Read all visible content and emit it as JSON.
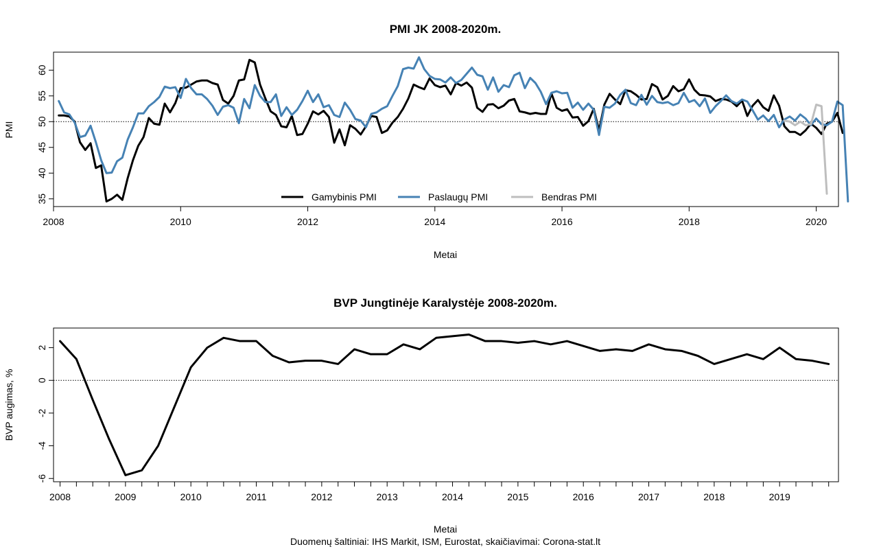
{
  "footer": {
    "source": "Duomenų šaltiniai: IHS Markit, ISM, Eurostat, skaičiavimai: Corona-stat.lt"
  },
  "chart_data": [
    {
      "type": "line",
      "title": "PMI JK 2008-2020m.",
      "xlabel": "Metai",
      "ylabel": "PMI",
      "xlim": [
        2008.0,
        2020.35
      ],
      "ylim": [
        33.5,
        63.5
      ],
      "x_ticks": [
        2008,
        2010,
        2012,
        2014,
        2016,
        2018,
        2020
      ],
      "x_tick_labels": [
        "2008",
        "2010",
        "2012",
        "2014",
        "2016",
        "2018",
        "2020"
      ],
      "y_ticks": [
        35,
        40,
        45,
        50,
        55,
        60
      ],
      "y_tick_labels": [
        "35",
        "40",
        "45",
        "50",
        "55",
        "60"
      ],
      "reference_line": {
        "y": 50,
        "style": "dotted"
      },
      "legend_position": "bottom-center",
      "series": [
        {
          "name": "Gamybinis PMI",
          "color": "#000000",
          "x_start": 2008.083,
          "x_step": 0.08333,
          "values": [
            51.2,
            51.2,
            51.0,
            50.0,
            46.0,
            44.5,
            45.8,
            41.0,
            41.5,
            34.5,
            35.0,
            35.8,
            34.8,
            39.0,
            42.5,
            45.3,
            47.0,
            50.7,
            49.6,
            49.4,
            53.5,
            51.8,
            53.6,
            56.5,
            56.6,
            57.2,
            57.8,
            58.0,
            58.0,
            57.5,
            57.2,
            54.2,
            53.5,
            55.0,
            58.0,
            58.2,
            62.0,
            61.5,
            57.2,
            54.5,
            52.0,
            51.3,
            49.1,
            48.9,
            51.1,
            47.4,
            47.6,
            49.6,
            52.0,
            51.4,
            52.1,
            50.9,
            45.9,
            48.5,
            45.4,
            49.3,
            48.6,
            47.5,
            49.1,
            51.1,
            50.9,
            47.8,
            48.3,
            49.8,
            50.9,
            52.5,
            54.5,
            57.2,
            56.7,
            56.3,
            58.4,
            57.1,
            56.7,
            57.0,
            55.3,
            57.5,
            57.0,
            57.6,
            56.6,
            52.7,
            51.9,
            53.3,
            53.4,
            52.6,
            53.1,
            54.1,
            54.4,
            52.0,
            51.8,
            51.5,
            51.7,
            51.5,
            51.5,
            55.5,
            52.7,
            52.1,
            52.4,
            50.8,
            50.9,
            49.2,
            50.1,
            52.5,
            48.3,
            53.3,
            55.4,
            54.3,
            53.4,
            56.1,
            55.9,
            55.2,
            54.3,
            54.4,
            57.3,
            56.7,
            54.3,
            55.0,
            56.9,
            55.9,
            56.3,
            58.2,
            56.2,
            55.2,
            55.1,
            54.9,
            54.0,
            54.4,
            54.3,
            53.9,
            53.0,
            54.1,
            51.1,
            53.1,
            54.2,
            52.8,
            52.1,
            55.1,
            53.1,
            49.1,
            48.0,
            48.0,
            47.4,
            48.3,
            49.6,
            48.8,
            47.6,
            49.6,
            50.0,
            51.7,
            47.8
          ]
        },
        {
          "name": "Paslaugų PMI",
          "color": "#4682B4",
          "x_start": 2008.083,
          "x_step": 0.08333,
          "values": [
            54.0,
            51.8,
            51.4,
            49.8,
            47.0,
            47.3,
            49.2,
            46.0,
            42.5,
            40.0,
            40.1,
            42.3,
            43.0,
            46.5,
            48.9,
            51.6,
            51.6,
            53.0,
            53.8,
            54.8,
            56.8,
            56.5,
            56.7,
            54.6,
            58.3,
            56.5,
            55.3,
            55.3,
            54.4,
            53.1,
            51.3,
            52.9,
            53.2,
            52.7,
            49.7,
            54.4,
            52.6,
            57.1,
            55.0,
            53.8,
            53.8,
            55.3,
            51.1,
            52.8,
            51.3,
            52.3,
            54.0,
            56.0,
            53.8,
            55.3,
            52.8,
            53.2,
            51.3,
            50.9,
            53.7,
            52.3,
            50.5,
            50.2,
            48.9,
            51.5,
            51.8,
            52.5,
            53.0,
            55.0,
            56.9,
            60.2,
            60.5,
            60.3,
            62.5,
            60.2,
            58.9,
            58.3,
            58.2,
            57.6,
            58.6,
            57.5,
            58.1,
            59.3,
            60.5,
            59.1,
            58.8,
            56.2,
            58.6,
            55.8,
            57.1,
            56.7,
            59.0,
            59.5,
            56.5,
            58.5,
            57.5,
            55.8,
            53.4,
            55.6,
            55.9,
            55.5,
            55.6,
            52.7,
            53.7,
            52.3,
            53.5,
            52.3,
            47.4,
            52.9,
            52.7,
            53.5,
            55.2,
            56.2,
            53.6,
            53.2,
            55.2,
            53.3,
            55.0,
            53.8,
            53.6,
            53.8,
            53.2,
            53.6,
            55.6,
            53.8,
            54.2,
            53.0,
            54.5,
            51.7,
            53.0,
            54.0,
            55.1,
            54.0,
            53.5,
            54.3,
            53.9,
            52.2,
            50.4,
            51.2,
            50.1,
            51.3,
            48.9,
            50.4,
            51.0,
            50.2,
            51.4,
            50.6,
            49.3,
            50.6,
            49.5,
            49.3,
            50.0,
            53.9,
            53.2,
            34.5
          ]
        },
        {
          "name": "Bendras PMI",
          "color": "#BEBEBE",
          "x_start": 2019.5,
          "x_step": 0.08333,
          "values": [
            50.2,
            50.0,
            49.3,
            50.0,
            49.3,
            49.5,
            53.3,
            53.0,
            36.0
          ]
        }
      ]
    },
    {
      "type": "line",
      "title": "BVP Jungtinėje Karalystėje 2008-2020m.",
      "xlabel": "Metai",
      "ylabel": "BVP augimas, %",
      "xlim": [
        2007.9,
        2019.9
      ],
      "ylim": [
        -6.2,
        3.2
      ],
      "x_ticks": [
        2008,
        2009,
        2010,
        2011,
        2012,
        2013,
        2014,
        2015,
        2016,
        2017,
        2018,
        2019
      ],
      "x_tick_labels": [
        "2008",
        "2009",
        "2010",
        "2011",
        "2012",
        "2013",
        "2014",
        "2015",
        "2016",
        "2017",
        "2018",
        "2019"
      ],
      "y_ticks": [
        -6,
        -4,
        -2,
        0,
        2
      ],
      "y_tick_labels": [
        "-6",
        "-4",
        "-2",
        "0",
        "2"
      ],
      "reference_line": {
        "y": 0,
        "style": "dotted"
      },
      "x_start": 2008.0,
      "x_step": 0.25,
      "values": [
        2.4,
        1.3,
        -1.2,
        -3.6,
        -5.8,
        -5.5,
        -4.0,
        -1.6,
        0.8,
        2.0,
        2.6,
        2.4,
        2.4,
        1.5,
        1.1,
        1.2,
        1.2,
        1.0,
        1.9,
        1.6,
        1.6,
        2.2,
        1.9,
        2.6,
        2.7,
        2.8,
        2.4,
        2.4,
        2.3,
        2.4,
        2.2,
        2.4,
        2.1,
        1.8,
        1.9,
        1.8,
        2.2,
        1.9,
        1.8,
        1.5,
        1.0,
        1.3,
        1.6,
        1.3,
        2.0,
        1.3,
        1.2,
        1.0
      ]
    }
  ]
}
